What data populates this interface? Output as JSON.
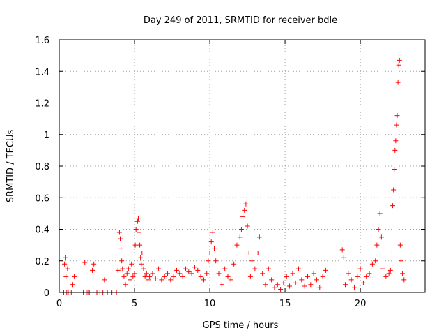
{
  "chart_data": {
    "type": "scatter",
    "title": "Day 249 of 2011, SRMTID for receiver bdle",
    "xlabel": "GPS time / hours",
    "ylabel": "SRMTID / TECUs",
    "xlim": [
      0,
      24.3
    ],
    "ylim": [
      0,
      1.6
    ],
    "xticks": [
      0,
      5,
      10,
      15,
      20
    ],
    "yticks": [
      0,
      0.2,
      0.4,
      0.6,
      0.8,
      1,
      1.2,
      1.4,
      1.6
    ],
    "xtick_labels": [
      "0",
      "5",
      "10",
      "15",
      "20"
    ],
    "ytick_labels": [
      "0",
      "0.2",
      "0.4",
      "0.6",
      "0.8",
      "1",
      "1.2",
      "1.4",
      "1.6"
    ],
    "grid": true,
    "marker": "plus",
    "color": "#ff0000",
    "series": [
      {
        "values": [
          [
            0.3,
            0.0
          ],
          [
            0.35,
            0.18
          ],
          [
            0.4,
            0.22
          ],
          [
            0.45,
            0.1
          ],
          [
            0.5,
            0.0
          ],
          [
            0.55,
            0.15
          ],
          [
            0.6,
            0.0
          ],
          [
            0.8,
            0.0
          ],
          [
            0.9,
            0.05
          ],
          [
            1.0,
            0.1
          ],
          [
            1.6,
            0.0
          ],
          [
            1.7,
            0.19
          ],
          [
            1.8,
            0.0
          ],
          [
            1.9,
            0.0
          ],
          [
            2.0,
            0.0
          ],
          [
            2.2,
            0.14
          ],
          [
            2.3,
            0.18
          ],
          [
            2.5,
            0.0
          ],
          [
            2.7,
            0.0
          ],
          [
            2.9,
            0.0
          ],
          [
            3.0,
            0.08
          ],
          [
            3.2,
            0.0
          ],
          [
            3.5,
            0.0
          ],
          [
            3.8,
            0.0
          ],
          [
            3.9,
            0.14
          ],
          [
            4.0,
            0.38
          ],
          [
            4.05,
            0.34
          ],
          [
            4.1,
            0.28
          ],
          [
            4.15,
            0.2
          ],
          [
            4.2,
            0.15
          ],
          [
            4.3,
            0.1
          ],
          [
            4.4,
            0.05
          ],
          [
            4.5,
            0.12
          ],
          [
            4.6,
            0.15
          ],
          [
            4.7,
            0.08
          ],
          [
            4.8,
            0.18
          ],
          [
            4.9,
            0.1
          ],
          [
            5.0,
            0.12
          ],
          [
            5.05,
            0.3
          ],
          [
            5.1,
            0.4
          ],
          [
            5.2,
            0.45
          ],
          [
            5.25,
            0.47
          ],
          [
            5.3,
            0.38
          ],
          [
            5.35,
            0.3
          ],
          [
            5.4,
            0.22
          ],
          [
            5.45,
            0.18
          ],
          [
            5.5,
            0.25
          ],
          [
            5.6,
            0.15
          ],
          [
            5.7,
            0.1
          ],
          [
            5.8,
            0.12
          ],
          [
            5.9,
            0.08
          ],
          [
            6.0,
            0.1
          ],
          [
            6.2,
            0.12
          ],
          [
            6.4,
            0.09
          ],
          [
            6.6,
            0.15
          ],
          [
            6.8,
            0.08
          ],
          [
            7.0,
            0.1
          ],
          [
            7.2,
            0.12
          ],
          [
            7.4,
            0.08
          ],
          [
            7.6,
            0.1
          ],
          [
            7.8,
            0.14
          ],
          [
            8.0,
            0.12
          ],
          [
            8.2,
            0.1
          ],
          [
            8.4,
            0.15
          ],
          [
            8.6,
            0.13
          ],
          [
            8.8,
            0.12
          ],
          [
            9.0,
            0.16
          ],
          [
            9.2,
            0.14
          ],
          [
            9.4,
            0.1
          ],
          [
            9.6,
            0.08
          ],
          [
            9.8,
            0.12
          ],
          [
            9.9,
            0.2
          ],
          [
            10.0,
            0.25
          ],
          [
            10.1,
            0.32
          ],
          [
            10.2,
            0.38
          ],
          [
            10.3,
            0.28
          ],
          [
            10.4,
            0.2
          ],
          [
            10.6,
            0.12
          ],
          [
            10.8,
            0.05
          ],
          [
            11.0,
            0.15
          ],
          [
            11.2,
            0.1
          ],
          [
            11.4,
            0.08
          ],
          [
            11.6,
            0.18
          ],
          [
            11.8,
            0.3
          ],
          [
            12.0,
            0.35
          ],
          [
            12.1,
            0.4
          ],
          [
            12.2,
            0.48
          ],
          [
            12.3,
            0.52
          ],
          [
            12.4,
            0.56
          ],
          [
            12.5,
            0.42
          ],
          [
            12.6,
            0.25
          ],
          [
            12.7,
            0.1
          ],
          [
            12.8,
            0.2
          ],
          [
            13.0,
            0.15
          ],
          [
            13.2,
            0.25
          ],
          [
            13.3,
            0.35
          ],
          [
            13.5,
            0.12
          ],
          [
            13.7,
            0.05
          ],
          [
            13.9,
            0.15
          ],
          [
            14.1,
            0.08
          ],
          [
            14.3,
            0.03
          ],
          [
            14.5,
            0.05
          ],
          [
            14.7,
            0.02
          ],
          [
            14.9,
            0.06
          ],
          [
            15.1,
            0.1
          ],
          [
            15.3,
            0.04
          ],
          [
            15.5,
            0.12
          ],
          [
            15.7,
            0.06
          ],
          [
            15.9,
            0.15
          ],
          [
            16.1,
            0.08
          ],
          [
            16.3,
            0.04
          ],
          [
            16.5,
            0.1
          ],
          [
            16.7,
            0.05
          ],
          [
            16.9,
            0.12
          ],
          [
            17.1,
            0.08
          ],
          [
            17.3,
            0.03
          ],
          [
            17.5,
            0.1
          ],
          [
            17.7,
            0.14
          ],
          [
            18.8,
            0.27
          ],
          [
            18.9,
            0.22
          ],
          [
            19.0,
            0.05
          ],
          [
            19.2,
            0.12
          ],
          [
            19.4,
            0.08
          ],
          [
            19.6,
            0.03
          ],
          [
            19.8,
            0.1
          ],
          [
            20.0,
            0.15
          ],
          [
            20.2,
            0.06
          ],
          [
            20.4,
            0.1
          ],
          [
            20.6,
            0.12
          ],
          [
            20.8,
            0.18
          ],
          [
            21.0,
            0.2
          ],
          [
            21.1,
            0.3
          ],
          [
            21.2,
            0.4
          ],
          [
            21.3,
            0.5
          ],
          [
            21.4,
            0.35
          ],
          [
            21.5,
            0.15
          ],
          [
            21.7,
            0.1
          ],
          [
            21.9,
            0.12
          ],
          [
            22.0,
            0.14
          ],
          [
            22.1,
            0.25
          ],
          [
            22.15,
            0.55
          ],
          [
            22.2,
            0.65
          ],
          [
            22.25,
            0.78
          ],
          [
            22.3,
            0.9
          ],
          [
            22.35,
            0.96
          ],
          [
            22.4,
            1.06
          ],
          [
            22.45,
            1.12
          ],
          [
            22.5,
            1.33
          ],
          [
            22.55,
            1.44
          ],
          [
            22.6,
            1.47
          ],
          [
            22.65,
            0.3
          ],
          [
            22.7,
            0.2
          ],
          [
            22.8,
            0.12
          ],
          [
            22.9,
            0.08
          ]
        ]
      }
    ]
  }
}
